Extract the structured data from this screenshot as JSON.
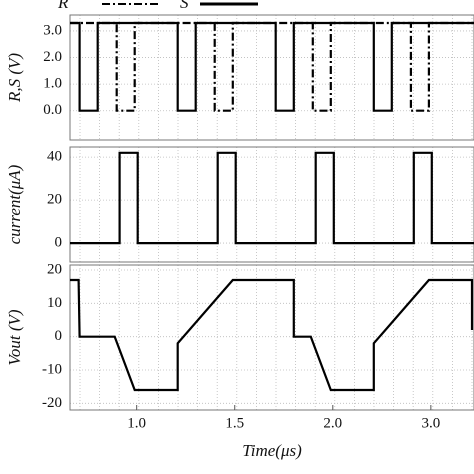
{
  "chart_data": [
    {
      "type": "line",
      "ylabel": "R,S (V)",
      "xlim": [
        0.66,
        2.72
      ],
      "ylim": [
        -1.1,
        3.6
      ],
      "yticks": [
        {
          "value": 0,
          "label": "0.0"
        },
        {
          "value": 1,
          "label": "1.0"
        },
        {
          "value": 2,
          "label": "2.0"
        },
        {
          "value": 3,
          "label": "3.0"
        }
      ],
      "grid": true,
      "series": [
        {
          "name": "R",
          "color": "#000000",
          "dash": "dashdot",
          "x": [
            0.66,
            0.898,
            0.898,
            0.99,
            0.99,
            1.398,
            1.398,
            1.49,
            1.49,
            1.898,
            1.898,
            1.99,
            1.99,
            2.398,
            2.398,
            2.49,
            2.49,
            2.72
          ],
          "values": [
            3.3,
            3.3,
            0,
            0,
            3.3,
            3.3,
            0,
            0,
            3.3,
            3.3,
            0,
            0,
            3.3,
            3.3,
            0,
            0,
            3.3,
            3.3
          ]
        },
        {
          "name": "S",
          "color": "#000000",
          "dash": "solid",
          "x": [
            0.66,
            0.709,
            0.709,
            0.801,
            0.801,
            1.209,
            1.209,
            1.301,
            1.301,
            1.709,
            1.709,
            1.801,
            1.801,
            2.209,
            2.209,
            2.301,
            2.301,
            2.72
          ],
          "values": [
            3.3,
            3.3,
            0,
            0,
            3.3,
            3.3,
            0,
            0,
            3.3,
            3.3,
            0,
            0,
            3.3,
            3.3,
            0,
            0,
            3.3,
            3.3
          ]
        }
      ]
    },
    {
      "type": "line",
      "ylabel": "current(μA)",
      "xlim": [
        0.66,
        2.72
      ],
      "ylim": [
        -8.8,
        44.7
      ],
      "yticks": [
        0,
        20,
        40
      ],
      "grid": true,
      "series": [
        {
          "name": null,
          "color": "#000000",
          "dash": "solid",
          "x": [
            0.66,
            0.913,
            0.913,
            1.005,
            1.005,
            1.413,
            1.413,
            1.505,
            1.505,
            1.913,
            1.913,
            2.005,
            2.005,
            2.413,
            2.413,
            2.505,
            2.505,
            2.72
          ],
          "values": [
            0,
            0,
            42,
            42,
            0,
            0,
            42,
            42,
            0,
            0,
            42,
            42,
            0,
            0,
            42,
            42,
            0,
            0
          ]
        }
      ]
    },
    {
      "type": "line",
      "ylabel": "Vout (V)",
      "xlabel": "Time(μs)",
      "xlim": [
        0.66,
        2.72
      ],
      "ylim": [
        -22,
        21.5
      ],
      "yticks": [
        -20,
        -10,
        0,
        10,
        20
      ],
      "grid": true,
      "xticks": [
        {
          "value": 1,
          "label": "1.0"
        },
        {
          "value": 1.5,
          "label": "1.5"
        },
        {
          "value": 2,
          "label": "2.0"
        },
        {
          "value": 3,
          "label": "3.0"
        }
      ],
      "series": [
        {
          "name": null,
          "color": "#000000",
          "dash": "solid",
          "x": [
            0.66,
            0.704,
            0.709,
            0.888,
            0.99,
            1.209,
            1.209,
            1.49,
            1.801,
            1.801,
            1.888,
            1.99,
            2.209,
            2.209,
            2.49,
            2.71,
            2.71
          ],
          "values": [
            17,
            17,
            0,
            0,
            -16,
            -16,
            -2,
            17,
            17,
            0,
            0,
            -16,
            -16,
            -2,
            17,
            17,
            2
          ]
        }
      ]
    }
  ]
}
